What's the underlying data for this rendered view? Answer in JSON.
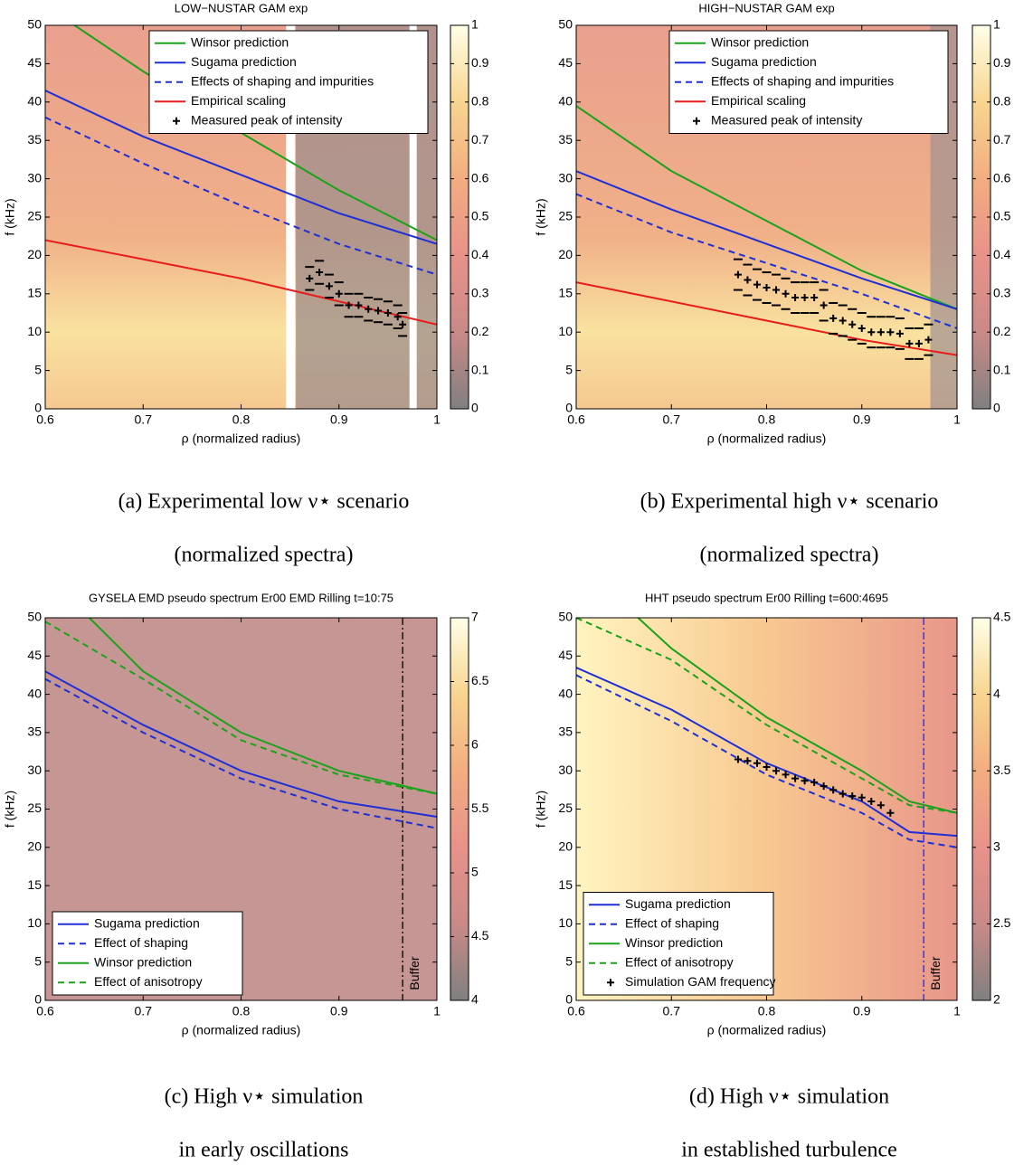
{
  "chart_data": [
    {
      "type": "line",
      "title": "LOW−NUSTAR GAM exp",
      "xlabel": "ρ (normalized radius)",
      "ylabel": "f (kHz)",
      "caption": [
        "(a) Experimental low ν⋆ scenario",
        "(normalized spectra)"
      ],
      "xlim": [
        0.6,
        1
      ],
      "xticks": [
        0.6,
        0.7,
        0.8,
        0.9,
        1
      ],
      "ylim": [
        0,
        50
      ],
      "yticks": [
        0,
        5,
        10,
        15,
        20,
        25,
        30,
        35,
        40,
        45,
        50
      ],
      "clim": [
        0,
        1
      ],
      "cticks": [
        0,
        0.1,
        0.2,
        0.3,
        0.4,
        0.5,
        0.6,
        0.7,
        0.8,
        0.9,
        1
      ],
      "colormap": [
        "#808080",
        "#c98a88",
        "#e8928a",
        "#f2ad80",
        "#f8d590",
        "#ffffe8"
      ],
      "legend": "upper right",
      "series": [
        {
          "name": "Winsor prediction",
          "color": "#1aa31a",
          "style": "solid",
          "x": [
            0.63,
            0.7,
            0.8,
            0.9,
            1
          ],
          "values": [
            50,
            44,
            36,
            28.5,
            22
          ]
        },
        {
          "name": "Sugama prediction",
          "color": "#1f2fd6",
          "style": "solid",
          "x": [
            0.6,
            0.7,
            0.8,
            0.9,
            1
          ],
          "values": [
            41.5,
            35.5,
            30.5,
            25.5,
            21.5
          ]
        },
        {
          "name": "Effects of shaping and impurities",
          "color": "#1f2fd6",
          "style": "dashed",
          "x": [
            0.6,
            0.7,
            0.8,
            0.9,
            1
          ],
          "values": [
            38,
            32,
            26.5,
            21.5,
            17.5
          ]
        },
        {
          "name": "Empirical scaling",
          "color": "#e81c1c",
          "style": "solid",
          "x": [
            0.6,
            0.7,
            0.8,
            0.9,
            1
          ],
          "values": [
            22,
            19.5,
            17,
            14,
            11
          ]
        },
        {
          "name": "Measured peak of intensity",
          "color": "#000000",
          "style": "marker",
          "x": [
            0.87,
            0.88,
            0.89,
            0.9,
            0.91,
            0.92,
            0.93,
            0.94,
            0.95,
            0.96,
            0.965
          ],
          "values": [
            17,
            17.8,
            16,
            15,
            13.5,
            13.5,
            13,
            12.8,
            12.5,
            12,
            11
          ],
          "errors": [
            1.5,
            1.5,
            1.5,
            1.5,
            1.5,
            1.5,
            1.5,
            1.5,
            1.5,
            1.5,
            1.5
          ]
        }
      ]
    },
    {
      "type": "line",
      "title": "HIGH−NUSTAR GAM exp",
      "xlabel": "ρ (normalized radius)",
      "ylabel": "f (kHz)",
      "caption": [
        "(b) Experimental high ν⋆ scenario",
        "(normalized spectra)"
      ],
      "xlim": [
        0.6,
        1
      ],
      "xticks": [
        0.6,
        0.7,
        0.8,
        0.9,
        1
      ],
      "ylim": [
        0,
        50
      ],
      "yticks": [
        0,
        5,
        10,
        15,
        20,
        25,
        30,
        35,
        40,
        45,
        50
      ],
      "clim": [
        0,
        1
      ],
      "cticks": [
        0,
        0.1,
        0.2,
        0.3,
        0.4,
        0.5,
        0.6,
        0.7,
        0.8,
        0.9,
        1
      ],
      "colormap": [
        "#808080",
        "#c98a88",
        "#e8928a",
        "#f2ad80",
        "#f8d590",
        "#ffffe8"
      ],
      "legend": "upper right",
      "series": [
        {
          "name": "Winsor prediction",
          "color": "#1aa31a",
          "style": "solid",
          "x": [
            0.6,
            0.7,
            0.8,
            0.9,
            1
          ],
          "values": [
            39.5,
            31,
            24.5,
            18,
            13
          ]
        },
        {
          "name": "Sugama prediction",
          "color": "#1f2fd6",
          "style": "solid",
          "x": [
            0.6,
            0.7,
            0.8,
            0.9,
            1
          ],
          "values": [
            31,
            26,
            21.5,
            17,
            13
          ]
        },
        {
          "name": "Effects of shaping and impurities",
          "color": "#1f2fd6",
          "style": "dashed",
          "x": [
            0.6,
            0.7,
            0.8,
            0.9,
            1
          ],
          "values": [
            28,
            23,
            19,
            15,
            10.5
          ]
        },
        {
          "name": "Empirical scaling",
          "color": "#e81c1c",
          "style": "solid",
          "x": [
            0.6,
            0.7,
            0.8,
            0.9,
            1
          ],
          "values": [
            16.5,
            14,
            11.5,
            9,
            7
          ]
        },
        {
          "name": "Measured peak of intensity",
          "color": "#000000",
          "style": "marker",
          "x": [
            0.77,
            0.78,
            0.79,
            0.8,
            0.81,
            0.82,
            0.83,
            0.84,
            0.85,
            0.86,
            0.87,
            0.88,
            0.89,
            0.9,
            0.91,
            0.92,
            0.93,
            0.94,
            0.95,
            0.96,
            0.97
          ],
          "values": [
            17.5,
            16.8,
            16.2,
            15.8,
            15.5,
            15,
            14.5,
            14.5,
            14.5,
            13.5,
            11.8,
            11.5,
            11,
            10.5,
            10,
            10,
            10,
            9.8,
            8.5,
            8.5,
            9
          ],
          "errors": [
            2,
            2,
            2,
            2,
            2,
            2,
            2,
            2,
            2,
            2,
            2,
            2,
            2,
            2,
            2,
            2,
            2,
            2,
            2,
            2,
            2
          ]
        }
      ]
    },
    {
      "type": "line",
      "title": "GYSELA EMD pseudo spectrum Er00 EMD Rilling t=10:75",
      "xlabel": "ρ (normalized radius)",
      "ylabel": "f (kHz)",
      "caption": [
        "(c) High ν⋆ simulation",
        "in early oscillations"
      ],
      "xlim": [
        0.6,
        1
      ],
      "xticks": [
        0.6,
        0.7,
        0.8,
        0.9,
        1
      ],
      "ylim": [
        0,
        50
      ],
      "yticks": [
        0,
        5,
        10,
        15,
        20,
        25,
        30,
        35,
        40,
        45,
        50
      ],
      "clim": [
        4,
        7
      ],
      "cticks": [
        4,
        4.5,
        5,
        5.5,
        6,
        6.5,
        7
      ],
      "colormap": [
        "#808080",
        "#c98a88",
        "#e8928a",
        "#f2ad80",
        "#f8d590",
        "#ffffe8"
      ],
      "legend": "lower left",
      "annotation": {
        "text": "Buffer",
        "x": 0.965,
        "color": "#000000"
      },
      "series": [
        {
          "name": "Sugama prediction",
          "color": "#1f2fd6",
          "style": "solid",
          "x": [
            0.6,
            0.7,
            0.8,
            0.9,
            1
          ],
          "values": [
            43,
            36,
            30,
            26,
            24
          ]
        },
        {
          "name": "Effect of shaping",
          "color": "#1f2fd6",
          "style": "dashed",
          "x": [
            0.6,
            0.7,
            0.8,
            0.9,
            1
          ],
          "values": [
            42,
            35,
            29,
            25,
            22.5
          ]
        },
        {
          "name": "Winsor prediction",
          "color": "#1aa31a",
          "style": "solid",
          "x": [
            0.645,
            0.7,
            0.8,
            0.9,
            1
          ],
          "values": [
            50,
            43,
            35,
            30,
            27
          ]
        },
        {
          "name": "Effect of anisotropy",
          "color": "#1aa31a",
          "style": "dashed",
          "x": [
            0.6,
            0.7,
            0.8,
            0.9,
            1
          ],
          "values": [
            49.5,
            42,
            34,
            29.5,
            27
          ]
        }
      ]
    },
    {
      "type": "line",
      "title": "HHT pseudo spectrum Er00 Rilling t=600:4695",
      "xlabel": "ρ (normalized radius)",
      "ylabel": "f (kHz)",
      "caption": [
        "(d) High ν⋆ simulation",
        "in established turbulence"
      ],
      "xlim": [
        0.6,
        1
      ],
      "xticks": [
        0.6,
        0.7,
        0.8,
        0.9,
        1
      ],
      "ylim": [
        0,
        50
      ],
      "yticks": [
        0,
        5,
        10,
        15,
        20,
        25,
        30,
        35,
        40,
        45,
        50
      ],
      "clim": [
        2,
        4.5
      ],
      "cticks": [
        2,
        2.5,
        3,
        3.5,
        4,
        4.5
      ],
      "colormap": [
        "#808080",
        "#c98a88",
        "#e8928a",
        "#f2ad80",
        "#f8d590",
        "#ffffe8"
      ],
      "legend": "lower left",
      "annotation": {
        "text": "Buffer",
        "x": 0.965,
        "color": "#1f2fd6"
      },
      "series": [
        {
          "name": "Sugama prediction",
          "color": "#1f2fd6",
          "style": "solid",
          "x": [
            0.6,
            0.7,
            0.8,
            0.9,
            0.95,
            1
          ],
          "values": [
            43.5,
            38,
            31,
            26,
            22,
            21.5
          ]
        },
        {
          "name": "Effect of shaping",
          "color": "#1f2fd6",
          "style": "dashed",
          "x": [
            0.6,
            0.7,
            0.8,
            0.9,
            0.95,
            1
          ],
          "values": [
            42.5,
            36.5,
            29.5,
            24.5,
            21,
            20
          ]
        },
        {
          "name": "Winsor prediction",
          "color": "#1aa31a",
          "style": "solid",
          "x": [
            0.665,
            0.7,
            0.8,
            0.9,
            0.95,
            1
          ],
          "values": [
            50,
            46,
            37,
            30,
            26,
            24.5
          ]
        },
        {
          "name": "Effect of anisotropy",
          "color": "#1aa31a",
          "style": "dashed",
          "x": [
            0.6,
            0.7,
            0.8,
            0.9,
            0.95,
            1
          ],
          "values": [
            50,
            44.5,
            36,
            29,
            25.5,
            24.5
          ]
        },
        {
          "name": "Simulation GAM frequency",
          "color": "#000000",
          "style": "marker",
          "x": [
            0.77,
            0.78,
            0.79,
            0.8,
            0.81,
            0.82,
            0.83,
            0.84,
            0.85,
            0.86,
            0.87,
            0.88,
            0.89,
            0.9,
            0.91,
            0.92,
            0.93
          ],
          "values": [
            31.5,
            31.3,
            31,
            30.5,
            30,
            29.5,
            29,
            28.7,
            28.5,
            28,
            27.5,
            27,
            26.7,
            26.5,
            26,
            25.5,
            24.5
          ]
        }
      ]
    }
  ]
}
